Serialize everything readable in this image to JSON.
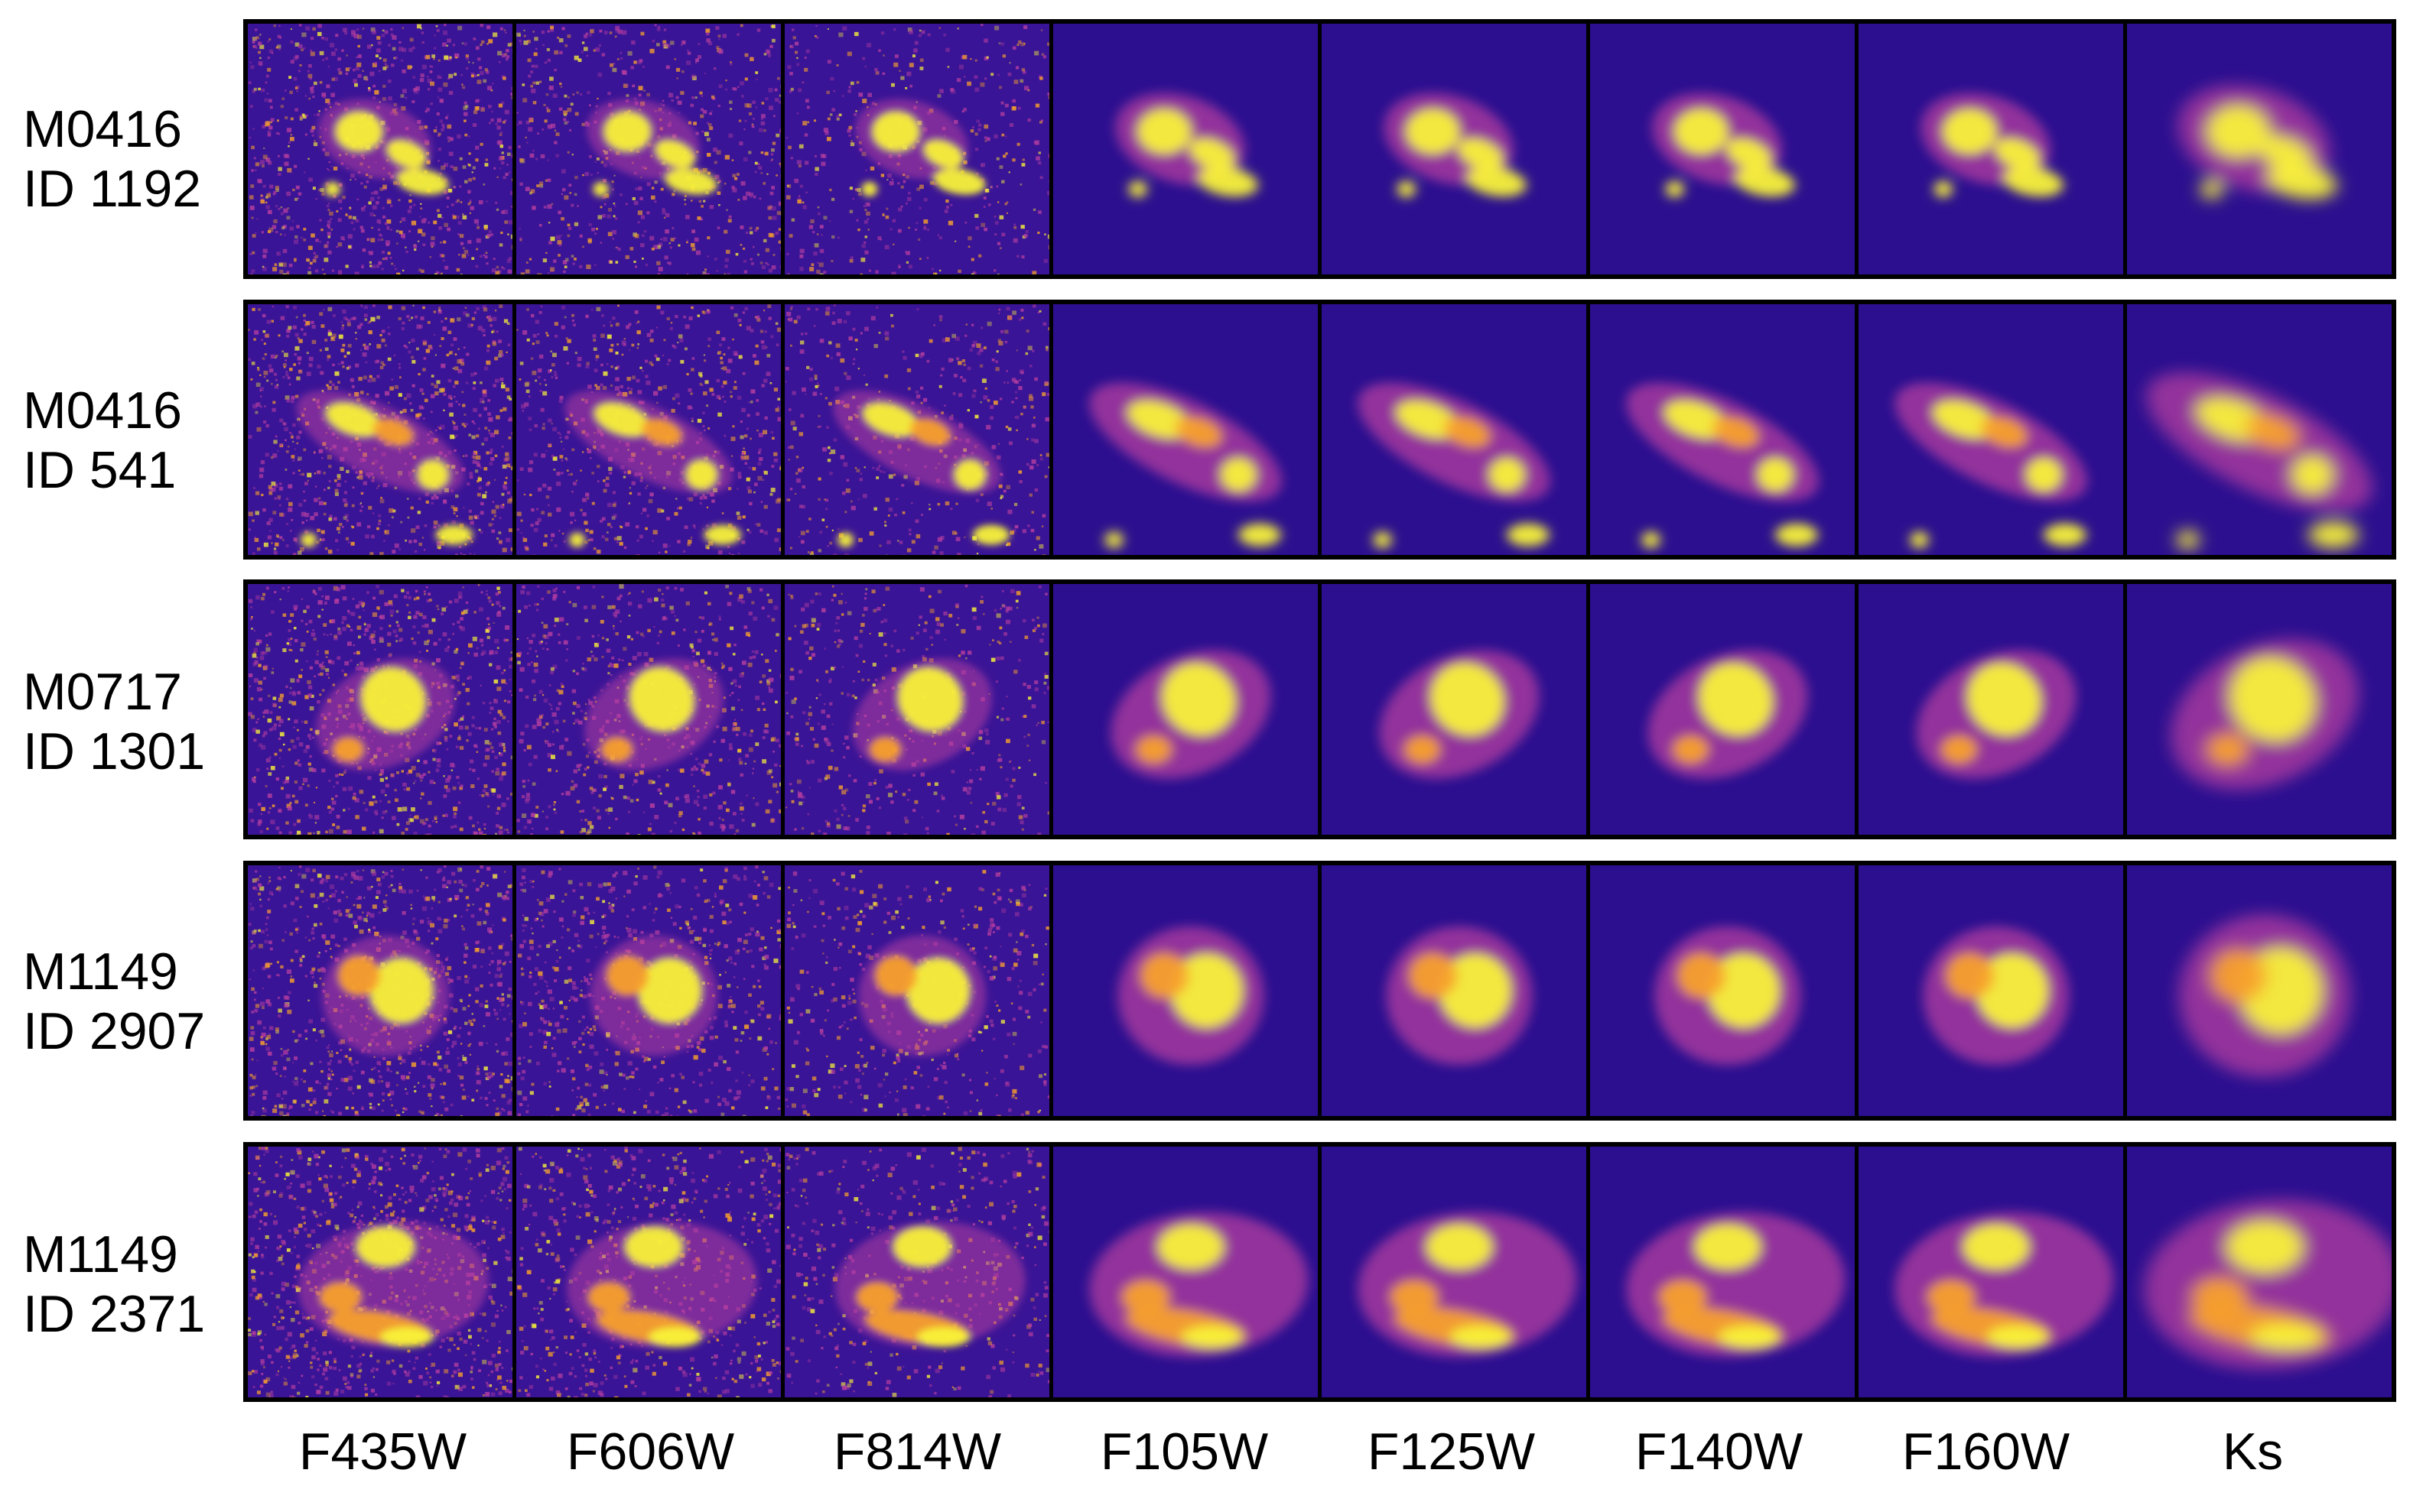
{
  "bands": [
    "F435W",
    "F606W",
    "F814W",
    "F105W",
    "F125W",
    "F140W",
    "F160W",
    "Ks"
  ],
  "rows": [
    {
      "field": "M0416",
      "id": "ID 1192"
    },
    {
      "field": "M0416",
      "id": "ID 541"
    },
    {
      "field": "M0717",
      "id": "ID 1301"
    },
    {
      "field": "M1149",
      "id": "ID 2907"
    },
    {
      "field": "M1149",
      "id": "ID 2371"
    }
  ],
  "colors": {
    "background_optical": "#3a1496",
    "background_ir": "#2b0f8f",
    "core": "#f8f23a",
    "mid": "#f7a02c",
    "halo": "#b63ea0",
    "frame": "#000000"
  },
  "colormap": "plasma"
}
